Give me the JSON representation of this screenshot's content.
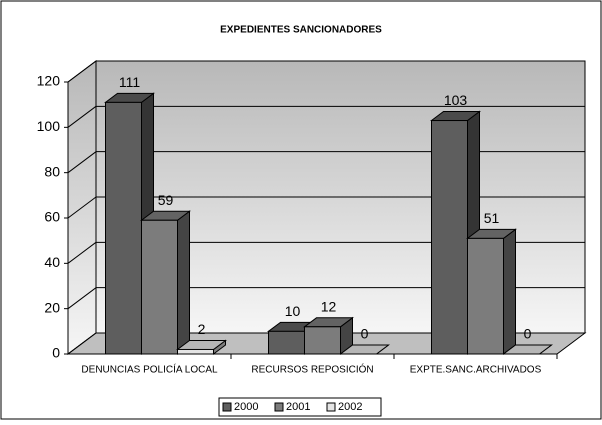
{
  "chart_data": {
    "type": "bar3d",
    "title": "EXPEDIENTES SANCIONADORES",
    "categories": [
      "DENUNCIAS POLICÍA LOCAL",
      "RECURSOS REPOSICIÓN",
      "EXPTE.SANC.ARCHIVADOS"
    ],
    "series": [
      {
        "name": "2000",
        "color": "#5e5e5e",
        "values": [
          111,
          10,
          103
        ]
      },
      {
        "name": "2001",
        "color": "#7c7c7c",
        "values": [
          59,
          12,
          51
        ]
      },
      {
        "name": "2002",
        "color": "#e4e4e4",
        "values": [
          2,
          0,
          0
        ]
      }
    ],
    "ylim": [
      0,
      120
    ],
    "yticks": [
      0,
      20,
      40,
      60,
      80,
      100,
      120
    ],
    "grid": true,
    "legend": "bottom"
  }
}
